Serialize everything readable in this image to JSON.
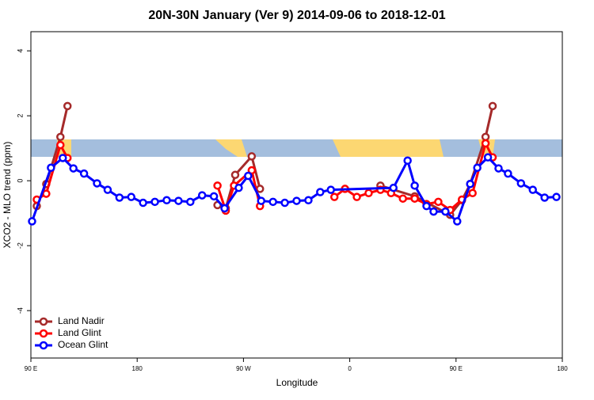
{
  "chart_data": {
    "type": "line",
    "title": "20N-30N January (Ver 9)   2014-09-06 to 2018-12-01",
    "x_label": "Longitude",
    "y_label": "XCO2 - MLO trend (ppm)",
    "xlim": [
      90,
      540
    ],
    "ylim": [
      -5.46,
      4.59
    ],
    "xticks": [
      {
        "value": 90,
        "label": "90 E"
      },
      180,
      {
        "value": 270,
        "label": "90 W"
      },
      {
        "value": 360,
        "label": "0"
      },
      {
        "value": 450,
        "label": "90 E"
      },
      {
        "value": 540,
        "label": "180"
      }
    ],
    "yticks": [
      -4,
      -2,
      0,
      2,
      4
    ],
    "legend": "bottom-left",
    "series": [
      {
        "name": "Land Nadir",
        "color": "#a52a2a",
        "x": [
          95,
          103,
          115,
          121,
          null,
          248,
          255,
          263,
          277,
          284,
          null,
          386,
          415,
          445,
          455,
          462,
          475,
          481
        ],
        "values": [
          -0.78,
          -0.1,
          1.35,
          2.3,
          null,
          -0.75,
          -0.85,
          0.18,
          0.75,
          -0.25,
          null,
          -0.15,
          -0.48,
          -1.05,
          -0.6,
          -0.1,
          1.35,
          2.3
        ]
      },
      {
        "name": "Land Glint",
        "color": "#ff0000",
        "x": [
          95,
          103,
          115,
          121,
          null,
          248,
          255,
          262,
          277,
          284,
          null,
          347,
          356,
          366,
          376,
          386,
          395,
          405,
          415,
          425,
          435,
          445,
          455,
          464,
          475,
          481
        ],
        "values": [
          -0.58,
          -0.4,
          1.1,
          0.7,
          null,
          -0.15,
          -0.92,
          -0.15,
          0.32,
          -0.78,
          null,
          -0.5,
          -0.25,
          -0.5,
          -0.38,
          -0.28,
          -0.38,
          -0.55,
          -0.55,
          -0.72,
          -0.65,
          -0.9,
          -0.58,
          -0.38,
          1.15,
          0.72
        ]
      },
      {
        "name": "Ocean Glint",
        "color": "#0000ff",
        "x": [
          91,
          107,
          117,
          126,
          135,
          146,
          155,
          165,
          175,
          185,
          195,
          205,
          215,
          225,
          235,
          245,
          254,
          266,
          274,
          285,
          295,
          305,
          315,
          325,
          335,
          344,
          397,
          409,
          415,
          425,
          431,
          441,
          451,
          462,
          468,
          477,
          486,
          494,
          505,
          515,
          525,
          535
        ],
        "values": [
          -1.25,
          0.4,
          0.7,
          0.38,
          0.22,
          -0.08,
          -0.28,
          -0.52,
          -0.5,
          -0.68,
          -0.65,
          -0.6,
          -0.62,
          -0.65,
          -0.45,
          -0.48,
          -0.85,
          -0.22,
          0.15,
          -0.62,
          -0.65,
          -0.68,
          -0.62,
          -0.6,
          -0.35,
          -0.28,
          -0.22,
          0.62,
          -0.15,
          -0.78,
          -0.95,
          -0.95,
          -1.25,
          -0.1,
          0.4,
          0.72,
          0.38,
          0.22,
          -0.08,
          -0.28,
          -0.52,
          -0.5
        ]
      }
    ]
  }
}
